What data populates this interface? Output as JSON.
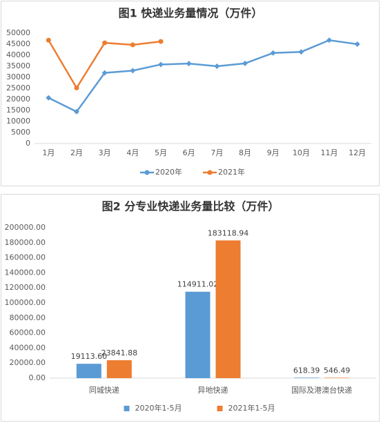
{
  "chart_data": [
    {
      "type": "line",
      "title": "图1 快递业务量情况（万件）",
      "categories": [
        "1月",
        "2月",
        "3月",
        "4月",
        "5月",
        "6月",
        "7月",
        "8月",
        "9月",
        "10月",
        "11月",
        "12月"
      ],
      "series": [
        {
          "name": "2020年",
          "color": "#5b9bd5",
          "marker": "diamond",
          "values": [
            20700,
            14400,
            32000,
            33000,
            35800,
            36200,
            35000,
            36300,
            41000,
            41500,
            46800,
            45000
          ]
        },
        {
          "name": "2021年",
          "color": "#ed7d31",
          "marker": "circle",
          "values": [
            46800,
            25200,
            45600,
            44700,
            46200,
            null,
            null,
            null,
            null,
            null,
            null,
            null
          ]
        }
      ],
      "ylim": [
        0,
        50000
      ],
      "yticks": [
        0,
        5000,
        10000,
        15000,
        20000,
        25000,
        30000,
        35000,
        40000,
        45000,
        50000
      ],
      "grid": false,
      "legend": "bottom"
    },
    {
      "type": "bar",
      "title": "图2 分专业快递业务量比较（万件）",
      "categories": [
        "同城快递",
        "异地快递",
        "国际及港澳台快递"
      ],
      "series": [
        {
          "name": "2020年1-5月",
          "color": "#5b9bd5",
          "values": [
            19113.6,
            114911.02,
            618.39
          ],
          "value_labels": [
            "19113.60",
            "114911.02",
            "618.39"
          ]
        },
        {
          "name": "2021年1-5月",
          "color": "#ed7d31",
          "values": [
            23841.88,
            183118.94,
            546.49
          ],
          "value_labels": [
            "23841.88",
            "183118.94",
            "546.49"
          ]
        }
      ],
      "ylim": [
        0,
        200000
      ],
      "yticks": [
        {
          "value": 0,
          "label": "0.00"
        },
        {
          "value": 20000,
          "label": "20000.00"
        },
        {
          "value": 40000,
          "label": "40000.00"
        },
        {
          "value": 60000,
          "label": "60000.00"
        },
        {
          "value": 80000,
          "label": "80000.00"
        },
        {
          "value": 100000,
          "label": "100000.00"
        },
        {
          "value": 120000,
          "label": "120000.00"
        },
        {
          "value": 140000,
          "label": "140000.00"
        },
        {
          "value": 160000,
          "label": "160000.00"
        },
        {
          "value": 180000,
          "label": "180000.00"
        },
        {
          "value": 200000,
          "label": "200000.00"
        }
      ],
      "grid": false,
      "legend": "bottom"
    }
  ]
}
